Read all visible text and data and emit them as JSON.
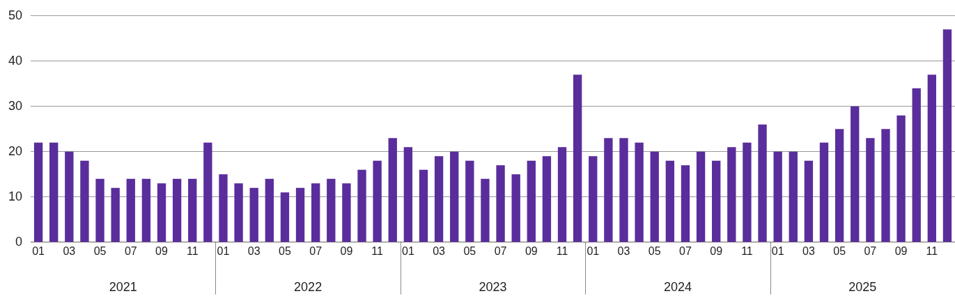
{
  "chart_data": {
    "type": "bar",
    "categories": [
      "01",
      null,
      "03",
      null,
      "05",
      null,
      "07",
      null,
      "09",
      null,
      "11",
      null,
      "01",
      null,
      "03",
      null,
      "05",
      null,
      "07",
      null,
      "09",
      null,
      "11",
      null,
      "01",
      null,
      "03",
      null,
      "05",
      null,
      "07",
      null,
      "09",
      null,
      "11",
      null,
      "01",
      null,
      "03",
      null,
      "05",
      null,
      "07",
      null,
      "09",
      null,
      "11",
      null,
      "01",
      null,
      "03",
      null,
      "05",
      null,
      "07",
      null,
      "09",
      null,
      "11",
      null
    ],
    "series": [
      {
        "color": "#5a2d9c",
        "values": [
          22,
          22,
          20,
          18,
          14,
          12,
          14,
          14,
          13,
          14,
          14,
          22,
          15,
          13,
          12,
          14,
          11,
          12,
          13,
          14,
          13,
          16,
          18,
          23,
          21,
          16,
          19,
          20,
          18,
          14,
          17,
          15,
          18,
          19,
          21,
          37,
          19,
          23,
          23,
          22,
          20,
          18,
          17,
          20,
          18,
          21,
          22,
          26,
          20,
          20,
          18,
          22,
          25,
          30,
          23,
          25,
          28,
          34,
          37,
          47
        ]
      }
    ],
    "annotations": [
      "2021",
      "2022",
      "2023",
      "2024",
      "2025"
    ],
    "ylim": [
      0,
      50
    ],
    "yticks": [
      0,
      10,
      20,
      30,
      40,
      50
    ],
    "grid": "y"
  }
}
